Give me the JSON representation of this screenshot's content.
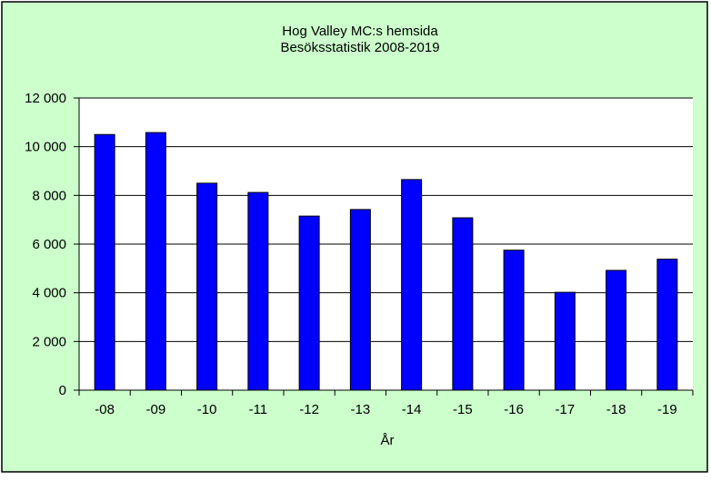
{
  "colors": {
    "background": "#ccffcc",
    "plot_area": "#ffffff",
    "bar_fill": "#0000ff",
    "bar_stroke": "#000000",
    "frame": "#000000"
  },
  "chart_data": {
    "type": "bar",
    "title": "Hog Valley MC:s hemsida",
    "subtitle": "Besöksstatistik 2008-2019",
    "xlabel": "År",
    "ylabel": "",
    "categories": [
      "-08",
      "-09",
      "-10",
      "-11",
      "-12",
      "-13",
      "-14",
      "-15",
      "-16",
      "-17",
      "-18",
      "-19"
    ],
    "values": [
      10500,
      10580,
      8500,
      8120,
      7150,
      7420,
      8650,
      7080,
      5750,
      4020,
      4920,
      5380
    ],
    "ylim": [
      0,
      12000
    ],
    "yticks": [
      0,
      2000,
      4000,
      6000,
      8000,
      10000,
      12000
    ],
    "ytick_labels": [
      "0",
      "2 000",
      "4 000",
      "6 000",
      "8 000",
      "10 000",
      "12 000"
    ],
    "grid": true,
    "legend": "none"
  }
}
